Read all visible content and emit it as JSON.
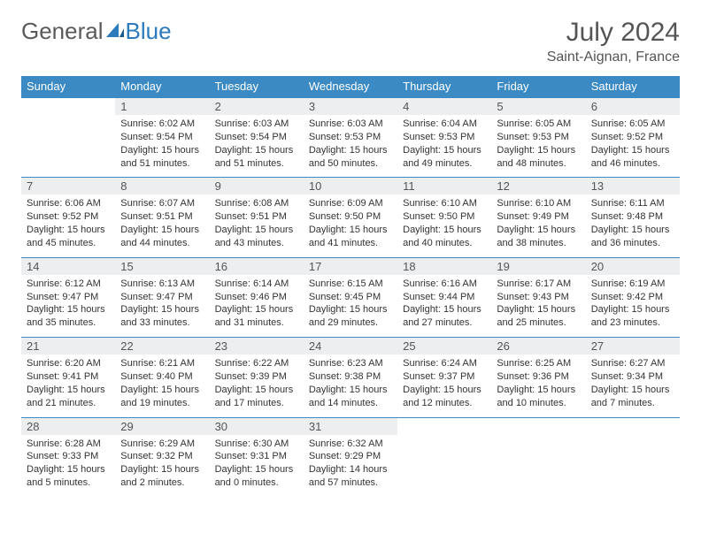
{
  "brand": {
    "part1": "General",
    "part2": "Blue"
  },
  "title": "July 2024",
  "location": "Saint-Aignan, France",
  "dow": [
    "Sunday",
    "Monday",
    "Tuesday",
    "Wednesday",
    "Thursday",
    "Friday",
    "Saturday"
  ],
  "header_bg": "#3b8ac4",
  "daynum_bg": "#eceeef",
  "text_color": "#333333",
  "weeks": [
    {
      "nums": [
        "",
        "1",
        "2",
        "3",
        "4",
        "5",
        "6"
      ],
      "cells": [
        null,
        {
          "sunrise": "Sunrise: 6:02 AM",
          "sunset": "Sunset: 9:54 PM",
          "day1": "Daylight: 15 hours",
          "day2": "and 51 minutes."
        },
        {
          "sunrise": "Sunrise: 6:03 AM",
          "sunset": "Sunset: 9:54 PM",
          "day1": "Daylight: 15 hours",
          "day2": "and 51 minutes."
        },
        {
          "sunrise": "Sunrise: 6:03 AM",
          "sunset": "Sunset: 9:53 PM",
          "day1": "Daylight: 15 hours",
          "day2": "and 50 minutes."
        },
        {
          "sunrise": "Sunrise: 6:04 AM",
          "sunset": "Sunset: 9:53 PM",
          "day1": "Daylight: 15 hours",
          "day2": "and 49 minutes."
        },
        {
          "sunrise": "Sunrise: 6:05 AM",
          "sunset": "Sunset: 9:53 PM",
          "day1": "Daylight: 15 hours",
          "day2": "and 48 minutes."
        },
        {
          "sunrise": "Sunrise: 6:05 AM",
          "sunset": "Sunset: 9:52 PM",
          "day1": "Daylight: 15 hours",
          "day2": "and 46 minutes."
        }
      ]
    },
    {
      "nums": [
        "7",
        "8",
        "9",
        "10",
        "11",
        "12",
        "13"
      ],
      "cells": [
        {
          "sunrise": "Sunrise: 6:06 AM",
          "sunset": "Sunset: 9:52 PM",
          "day1": "Daylight: 15 hours",
          "day2": "and 45 minutes."
        },
        {
          "sunrise": "Sunrise: 6:07 AM",
          "sunset": "Sunset: 9:51 PM",
          "day1": "Daylight: 15 hours",
          "day2": "and 44 minutes."
        },
        {
          "sunrise": "Sunrise: 6:08 AM",
          "sunset": "Sunset: 9:51 PM",
          "day1": "Daylight: 15 hours",
          "day2": "and 43 minutes."
        },
        {
          "sunrise": "Sunrise: 6:09 AM",
          "sunset": "Sunset: 9:50 PM",
          "day1": "Daylight: 15 hours",
          "day2": "and 41 minutes."
        },
        {
          "sunrise": "Sunrise: 6:10 AM",
          "sunset": "Sunset: 9:50 PM",
          "day1": "Daylight: 15 hours",
          "day2": "and 40 minutes."
        },
        {
          "sunrise": "Sunrise: 6:10 AM",
          "sunset": "Sunset: 9:49 PM",
          "day1": "Daylight: 15 hours",
          "day2": "and 38 minutes."
        },
        {
          "sunrise": "Sunrise: 6:11 AM",
          "sunset": "Sunset: 9:48 PM",
          "day1": "Daylight: 15 hours",
          "day2": "and 36 minutes."
        }
      ]
    },
    {
      "nums": [
        "14",
        "15",
        "16",
        "17",
        "18",
        "19",
        "20"
      ],
      "cells": [
        {
          "sunrise": "Sunrise: 6:12 AM",
          "sunset": "Sunset: 9:47 PM",
          "day1": "Daylight: 15 hours",
          "day2": "and 35 minutes."
        },
        {
          "sunrise": "Sunrise: 6:13 AM",
          "sunset": "Sunset: 9:47 PM",
          "day1": "Daylight: 15 hours",
          "day2": "and 33 minutes."
        },
        {
          "sunrise": "Sunrise: 6:14 AM",
          "sunset": "Sunset: 9:46 PM",
          "day1": "Daylight: 15 hours",
          "day2": "and 31 minutes."
        },
        {
          "sunrise": "Sunrise: 6:15 AM",
          "sunset": "Sunset: 9:45 PM",
          "day1": "Daylight: 15 hours",
          "day2": "and 29 minutes."
        },
        {
          "sunrise": "Sunrise: 6:16 AM",
          "sunset": "Sunset: 9:44 PM",
          "day1": "Daylight: 15 hours",
          "day2": "and 27 minutes."
        },
        {
          "sunrise": "Sunrise: 6:17 AM",
          "sunset": "Sunset: 9:43 PM",
          "day1": "Daylight: 15 hours",
          "day2": "and 25 minutes."
        },
        {
          "sunrise": "Sunrise: 6:19 AM",
          "sunset": "Sunset: 9:42 PM",
          "day1": "Daylight: 15 hours",
          "day2": "and 23 minutes."
        }
      ]
    },
    {
      "nums": [
        "21",
        "22",
        "23",
        "24",
        "25",
        "26",
        "27"
      ],
      "cells": [
        {
          "sunrise": "Sunrise: 6:20 AM",
          "sunset": "Sunset: 9:41 PM",
          "day1": "Daylight: 15 hours",
          "day2": "and 21 minutes."
        },
        {
          "sunrise": "Sunrise: 6:21 AM",
          "sunset": "Sunset: 9:40 PM",
          "day1": "Daylight: 15 hours",
          "day2": "and 19 minutes."
        },
        {
          "sunrise": "Sunrise: 6:22 AM",
          "sunset": "Sunset: 9:39 PM",
          "day1": "Daylight: 15 hours",
          "day2": "and 17 minutes."
        },
        {
          "sunrise": "Sunrise: 6:23 AM",
          "sunset": "Sunset: 9:38 PM",
          "day1": "Daylight: 15 hours",
          "day2": "and 14 minutes."
        },
        {
          "sunrise": "Sunrise: 6:24 AM",
          "sunset": "Sunset: 9:37 PM",
          "day1": "Daylight: 15 hours",
          "day2": "and 12 minutes."
        },
        {
          "sunrise": "Sunrise: 6:25 AM",
          "sunset": "Sunset: 9:36 PM",
          "day1": "Daylight: 15 hours",
          "day2": "and 10 minutes."
        },
        {
          "sunrise": "Sunrise: 6:27 AM",
          "sunset": "Sunset: 9:34 PM",
          "day1": "Daylight: 15 hours",
          "day2": "and 7 minutes."
        }
      ]
    },
    {
      "nums": [
        "28",
        "29",
        "30",
        "31",
        "",
        "",
        ""
      ],
      "cells": [
        {
          "sunrise": "Sunrise: 6:28 AM",
          "sunset": "Sunset: 9:33 PM",
          "day1": "Daylight: 15 hours",
          "day2": "and 5 minutes."
        },
        {
          "sunrise": "Sunrise: 6:29 AM",
          "sunset": "Sunset: 9:32 PM",
          "day1": "Daylight: 15 hours",
          "day2": "and 2 minutes."
        },
        {
          "sunrise": "Sunrise: 6:30 AM",
          "sunset": "Sunset: 9:31 PM",
          "day1": "Daylight: 15 hours",
          "day2": "and 0 minutes."
        },
        {
          "sunrise": "Sunrise: 6:32 AM",
          "sunset": "Sunset: 9:29 PM",
          "day1": "Daylight: 14 hours",
          "day2": "and 57 minutes."
        },
        null,
        null,
        null
      ]
    }
  ]
}
